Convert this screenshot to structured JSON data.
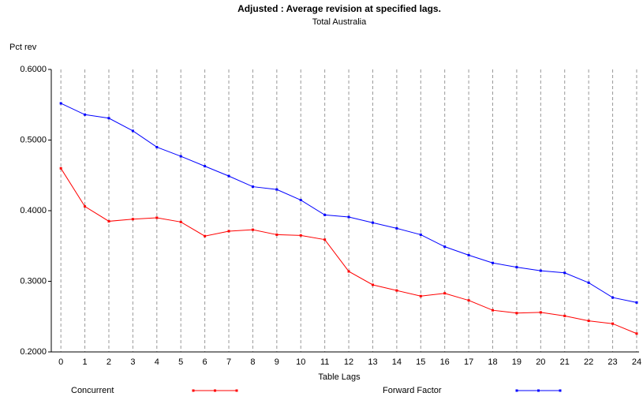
{
  "chart_data": {
    "type": "line",
    "title": "Adjusted : Average revision at specified lags.",
    "subtitle": "Total Australia",
    "y_label": "Pct rev",
    "x_label": "Table Lags",
    "x": [
      0,
      1,
      2,
      3,
      4,
      5,
      6,
      7,
      8,
      9,
      10,
      11,
      12,
      13,
      14,
      15,
      16,
      17,
      18,
      19,
      20,
      21,
      22,
      23,
      24
    ],
    "xlim": [
      -0.4,
      24.1
    ],
    "xticks": [
      0,
      1,
      2,
      3,
      4,
      5,
      6,
      7,
      8,
      9,
      10,
      11,
      12,
      13,
      14,
      15,
      16,
      17,
      18,
      19,
      20,
      21,
      22,
      23,
      24
    ],
    "ylim": [
      0.2,
      0.6
    ],
    "yticks": [
      {
        "value": 0.2,
        "label": "0.2000"
      },
      {
        "value": 0.3,
        "label": "0.3000"
      },
      {
        "value": 0.4,
        "label": "0.4000"
      },
      {
        "value": 0.5,
        "label": "0.5000"
      },
      {
        "value": 0.6,
        "label": "0.6000"
      }
    ],
    "grid": "x",
    "legend": "bottom",
    "series": [
      {
        "name": "Concurrent",
        "color": "#ff0000",
        "values": [
          0.46,
          0.406,
          0.385,
          0.388,
          0.39,
          0.384,
          0.364,
          0.371,
          0.373,
          0.366,
          0.365,
          0.359,
          0.314,
          0.295,
          0.287,
          0.279,
          0.283,
          0.273,
          0.259,
          0.255,
          0.256,
          0.251,
          0.244,
          0.24,
          0.226
        ]
      },
      {
        "name": "Forward Factor",
        "color": "#0000ff",
        "values": [
          0.552,
          0.536,
          0.531,
          0.513,
          0.49,
          0.477,
          0.463,
          0.449,
          0.434,
          0.43,
          0.415,
          0.394,
          0.391,
          0.383,
          0.375,
          0.366,
          0.349,
          0.337,
          0.326,
          0.32,
          0.315,
          0.312,
          0.298,
          0.277,
          0.27
        ]
      }
    ]
  }
}
